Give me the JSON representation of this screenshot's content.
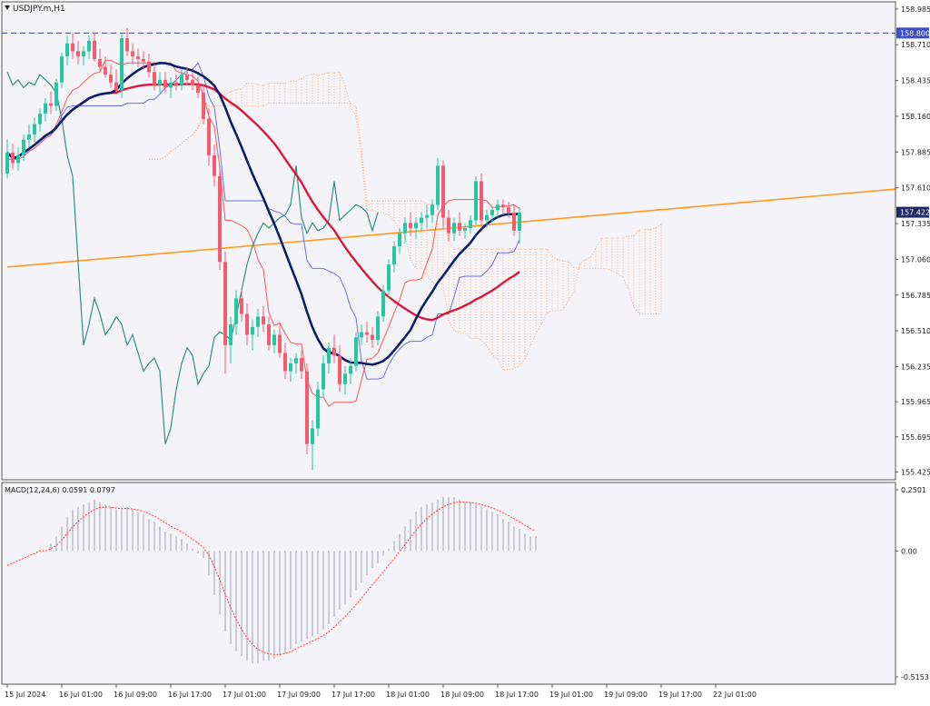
{
  "symbol_label": "USDJPY.m,H1",
  "macd_label": "MACD(12,24,6) 0.0591 0.0797",
  "colors": {
    "bull": "#26c6a2",
    "bear": "#f25c70",
    "ma_red": "#d9173b",
    "ma_navy": "#0d1f6b",
    "trend": "#ff9a1f",
    "tenkan": "#f05a5a",
    "kijun": "#6b6fe6",
    "chikou": "#2f8f83",
    "cloud": "#ffb07a",
    "level": "#3344aa",
    "macd_hist": "#b8b8c2",
    "macd_signal": "#ff3b3b",
    "current_price_box": "#1e2a66"
  },
  "chart_data": [
    {
      "type": "candlestick",
      "title": "",
      "timeframe": "H1",
      "y_ticks": [
        158.985,
        158.71,
        158.435,
        158.16,
        157.885,
        157.61,
        157.335,
        157.06,
        156.785,
        156.51,
        156.235,
        155.965,
        155.695,
        155.425
      ],
      "ylim": [
        155.365,
        159.04
      ],
      "x_ticks": [
        "15 Jul 2024",
        "16 Jul 01:00",
        "16 Jul 09:00",
        "16 Jul 17:00",
        "17 Jul 01:00",
        "17 Jul 09:00",
        "17 Jul 17:00",
        "18 Jul 01:00",
        "18 Jul 09:00",
        "18 Jul 17:00",
        "19 Jul 01:00",
        "19 Jul 09:00",
        "19 Jul 17:00",
        "22 Jul 01:00"
      ],
      "x_tick_bars": [
        0,
        10,
        20,
        30,
        40,
        50,
        60,
        70,
        80,
        90,
        100,
        110,
        120,
        130
      ],
      "bars_shown": 140,
      "current_price": 157.422,
      "level_line": 158.8,
      "trend_line": {
        "start_bar": 0,
        "start_price": 157.0,
        "end_bar": 166,
        "end_price": 157.6
      },
      "ohlc": [
        [
          157.72,
          157.98,
          157.68,
          157.88
        ],
        [
          157.88,
          157.95,
          157.75,
          157.8
        ],
        [
          157.8,
          157.92,
          157.74,
          157.86
        ],
        [
          157.86,
          158.02,
          157.82,
          157.98
        ],
        [
          157.98,
          158.1,
          157.92,
          158.02
        ],
        [
          158.02,
          158.15,
          157.96,
          158.1
        ],
        [
          158.1,
          158.22,
          158.04,
          158.18
        ],
        [
          158.18,
          158.3,
          158.12,
          158.26
        ],
        [
          158.26,
          158.35,
          158.18,
          158.24
        ],
        [
          158.24,
          158.45,
          158.2,
          158.42
        ],
        [
          158.42,
          158.65,
          158.38,
          158.62
        ],
        [
          158.62,
          158.78,
          158.55,
          158.72
        ],
        [
          158.72,
          158.8,
          158.6,
          158.66
        ],
        [
          158.66,
          158.74,
          158.56,
          158.62
        ],
        [
          158.62,
          158.7,
          158.55,
          158.66
        ],
        [
          158.66,
          158.78,
          158.6,
          158.74
        ],
        [
          158.74,
          158.8,
          158.58,
          158.6
        ],
        [
          158.6,
          158.68,
          158.5,
          158.54
        ],
        [
          158.54,
          158.62,
          158.46,
          158.48
        ],
        [
          158.48,
          158.56,
          158.38,
          158.42
        ],
        [
          158.42,
          158.52,
          158.34,
          158.36
        ],
        [
          158.36,
          158.8,
          158.3,
          158.76
        ],
        [
          158.76,
          158.84,
          158.62,
          158.66
        ],
        [
          158.66,
          158.72,
          158.56,
          158.62
        ],
        [
          158.62,
          158.68,
          158.54,
          158.6
        ],
        [
          158.6,
          158.66,
          158.52,
          158.58
        ],
        [
          158.58,
          158.64,
          158.46,
          158.5
        ],
        [
          158.5,
          158.56,
          158.36,
          158.4
        ],
        [
          158.4,
          158.5,
          158.34,
          158.44
        ],
        [
          158.44,
          158.5,
          158.34,
          158.38
        ],
        [
          158.38,
          158.46,
          158.3,
          158.42
        ],
        [
          158.42,
          158.48,
          158.36,
          158.4
        ],
        [
          158.4,
          158.52,
          158.36,
          158.48
        ],
        [
          158.48,
          158.54,
          158.4,
          158.44
        ],
        [
          158.44,
          158.5,
          158.36,
          158.4
        ],
        [
          158.4,
          158.46,
          158.3,
          158.34
        ],
        [
          158.34,
          158.4,
          158.1,
          158.14
        ],
        [
          158.14,
          158.22,
          157.78,
          157.86
        ],
        [
          157.86,
          157.94,
          157.62,
          157.7
        ],
        [
          157.7,
          157.78,
          156.98,
          157.04
        ],
        [
          157.04,
          157.12,
          156.18,
          156.4
        ],
        [
          156.4,
          156.62,
          156.26,
          156.56
        ],
        [
          156.56,
          156.82,
          156.48,
          156.76
        ],
        [
          156.76,
          156.84,
          156.58,
          156.64
        ],
        [
          156.64,
          156.72,
          156.4,
          156.48
        ],
        [
          156.48,
          156.6,
          156.36,
          156.54
        ],
        [
          156.54,
          156.68,
          156.46,
          156.62
        ],
        [
          156.62,
          156.7,
          156.5,
          156.56
        ],
        [
          156.56,
          156.62,
          156.36,
          156.4
        ],
        [
          156.4,
          156.52,
          156.34,
          156.48
        ],
        [
          156.48,
          156.56,
          156.3,
          156.34
        ],
        [
          156.34,
          156.42,
          156.14,
          156.2
        ],
        [
          156.2,
          156.3,
          156.12,
          156.26
        ],
        [
          156.26,
          156.34,
          156.18,
          156.3
        ],
        [
          156.3,
          156.36,
          156.14,
          156.2
        ],
        [
          156.2,
          156.26,
          155.56,
          155.64
        ],
        [
          155.64,
          155.82,
          155.44,
          155.76
        ],
        [
          155.76,
          156.12,
          155.7,
          156.06
        ],
        [
          156.06,
          156.32,
          156.0,
          156.26
        ],
        [
          156.26,
          156.42,
          156.18,
          156.38
        ],
        [
          156.38,
          156.48,
          156.26,
          156.32
        ],
        [
          156.32,
          156.4,
          156.04,
          156.1
        ],
        [
          156.1,
          156.24,
          156.02,
          156.18
        ],
        [
          156.18,
          156.3,
          156.1,
          156.24
        ],
        [
          156.24,
          156.5,
          156.2,
          156.46
        ],
        [
          156.46,
          156.56,
          156.4,
          156.5
        ],
        [
          156.5,
          156.58,
          156.42,
          156.48
        ],
        [
          156.48,
          156.54,
          156.38,
          156.44
        ],
        [
          156.44,
          156.66,
          156.4,
          156.62
        ],
        [
          156.62,
          156.86,
          156.58,
          156.82
        ],
        [
          156.82,
          157.06,
          156.76,
          157.02
        ],
        [
          157.02,
          157.2,
          156.96,
          157.16
        ],
        [
          157.16,
          157.3,
          157.1,
          157.26
        ],
        [
          157.26,
          157.38,
          157.18,
          157.34
        ],
        [
          157.34,
          157.42,
          157.24,
          157.3
        ],
        [
          157.3,
          157.38,
          157.22,
          157.34
        ],
        [
          157.34,
          157.42,
          157.28,
          157.38
        ],
        [
          157.38,
          157.48,
          157.3,
          157.4
        ],
        [
          157.4,
          157.52,
          157.34,
          157.48
        ],
        [
          157.48,
          157.84,
          157.44,
          157.78
        ],
        [
          157.78,
          157.82,
          157.3,
          157.38
        ],
        [
          157.38,
          157.44,
          157.2,
          157.26
        ],
        [
          157.26,
          157.38,
          157.2,
          157.34
        ],
        [
          157.34,
          157.42,
          157.24,
          157.28
        ],
        [
          157.28,
          157.34,
          157.22,
          157.3
        ],
        [
          157.3,
          157.4,
          157.26,
          157.36
        ],
        [
          157.36,
          157.7,
          157.32,
          157.66
        ],
        [
          157.66,
          157.72,
          157.3,
          157.36
        ],
        [
          157.36,
          157.44,
          157.3,
          157.4
        ],
        [
          157.4,
          157.46,
          157.34,
          157.44
        ],
        [
          157.44,
          157.52,
          157.38,
          157.48
        ],
        [
          157.48,
          157.52,
          157.4,
          157.46
        ],
        [
          157.46,
          157.5,
          157.38,
          157.42
        ],
        [
          157.42,
          157.48,
          157.24,
          157.28
        ],
        [
          157.28,
          157.46,
          157.18,
          157.42
        ]
      ]
    },
    {
      "type": "line",
      "title": "",
      "name": "MACD(12,24,6)",
      "y_ticks": [
        0.2501,
        0.0,
        -0.5153
      ],
      "ylim": [
        -0.5153,
        0.2501
      ],
      "histogram": [
        0.0,
        0.0,
        0.0,
        0.0,
        0.0,
        0.0,
        0.0,
        0.0,
        0.03,
        0.06,
        0.1,
        0.14,
        0.17,
        0.18,
        0.19,
        0.2,
        0.21,
        0.2,
        0.19,
        0.18,
        0.17,
        0.17,
        0.18,
        0.17,
        0.16,
        0.15,
        0.13,
        0.12,
        0.1,
        0.08,
        0.07,
        0.06,
        0.05,
        0.03,
        0.01,
        -0.01,
        -0.03,
        -0.1,
        -0.18,
        -0.26,
        -0.33,
        -0.38,
        -0.41,
        -0.43,
        -0.45,
        -0.46,
        -0.46,
        -0.45,
        -0.45,
        -0.44,
        -0.43,
        -0.42,
        -0.4,
        -0.38,
        -0.37,
        -0.36,
        -0.35,
        -0.34,
        -0.32,
        -0.3,
        -0.27,
        -0.24,
        -0.22,
        -0.19,
        -0.16,
        -0.13,
        -0.1,
        -0.07,
        -0.05,
        -0.02,
        0.01,
        0.04,
        0.07,
        0.1,
        0.13,
        0.16,
        0.18,
        0.19,
        0.2,
        0.21,
        0.22,
        0.22,
        0.22,
        0.21,
        0.2,
        0.2,
        0.19,
        0.18,
        0.17,
        0.16,
        0.15,
        0.13,
        0.12,
        0.1,
        0.09,
        0.07,
        0.06,
        0.06
      ]
    }
  ]
}
